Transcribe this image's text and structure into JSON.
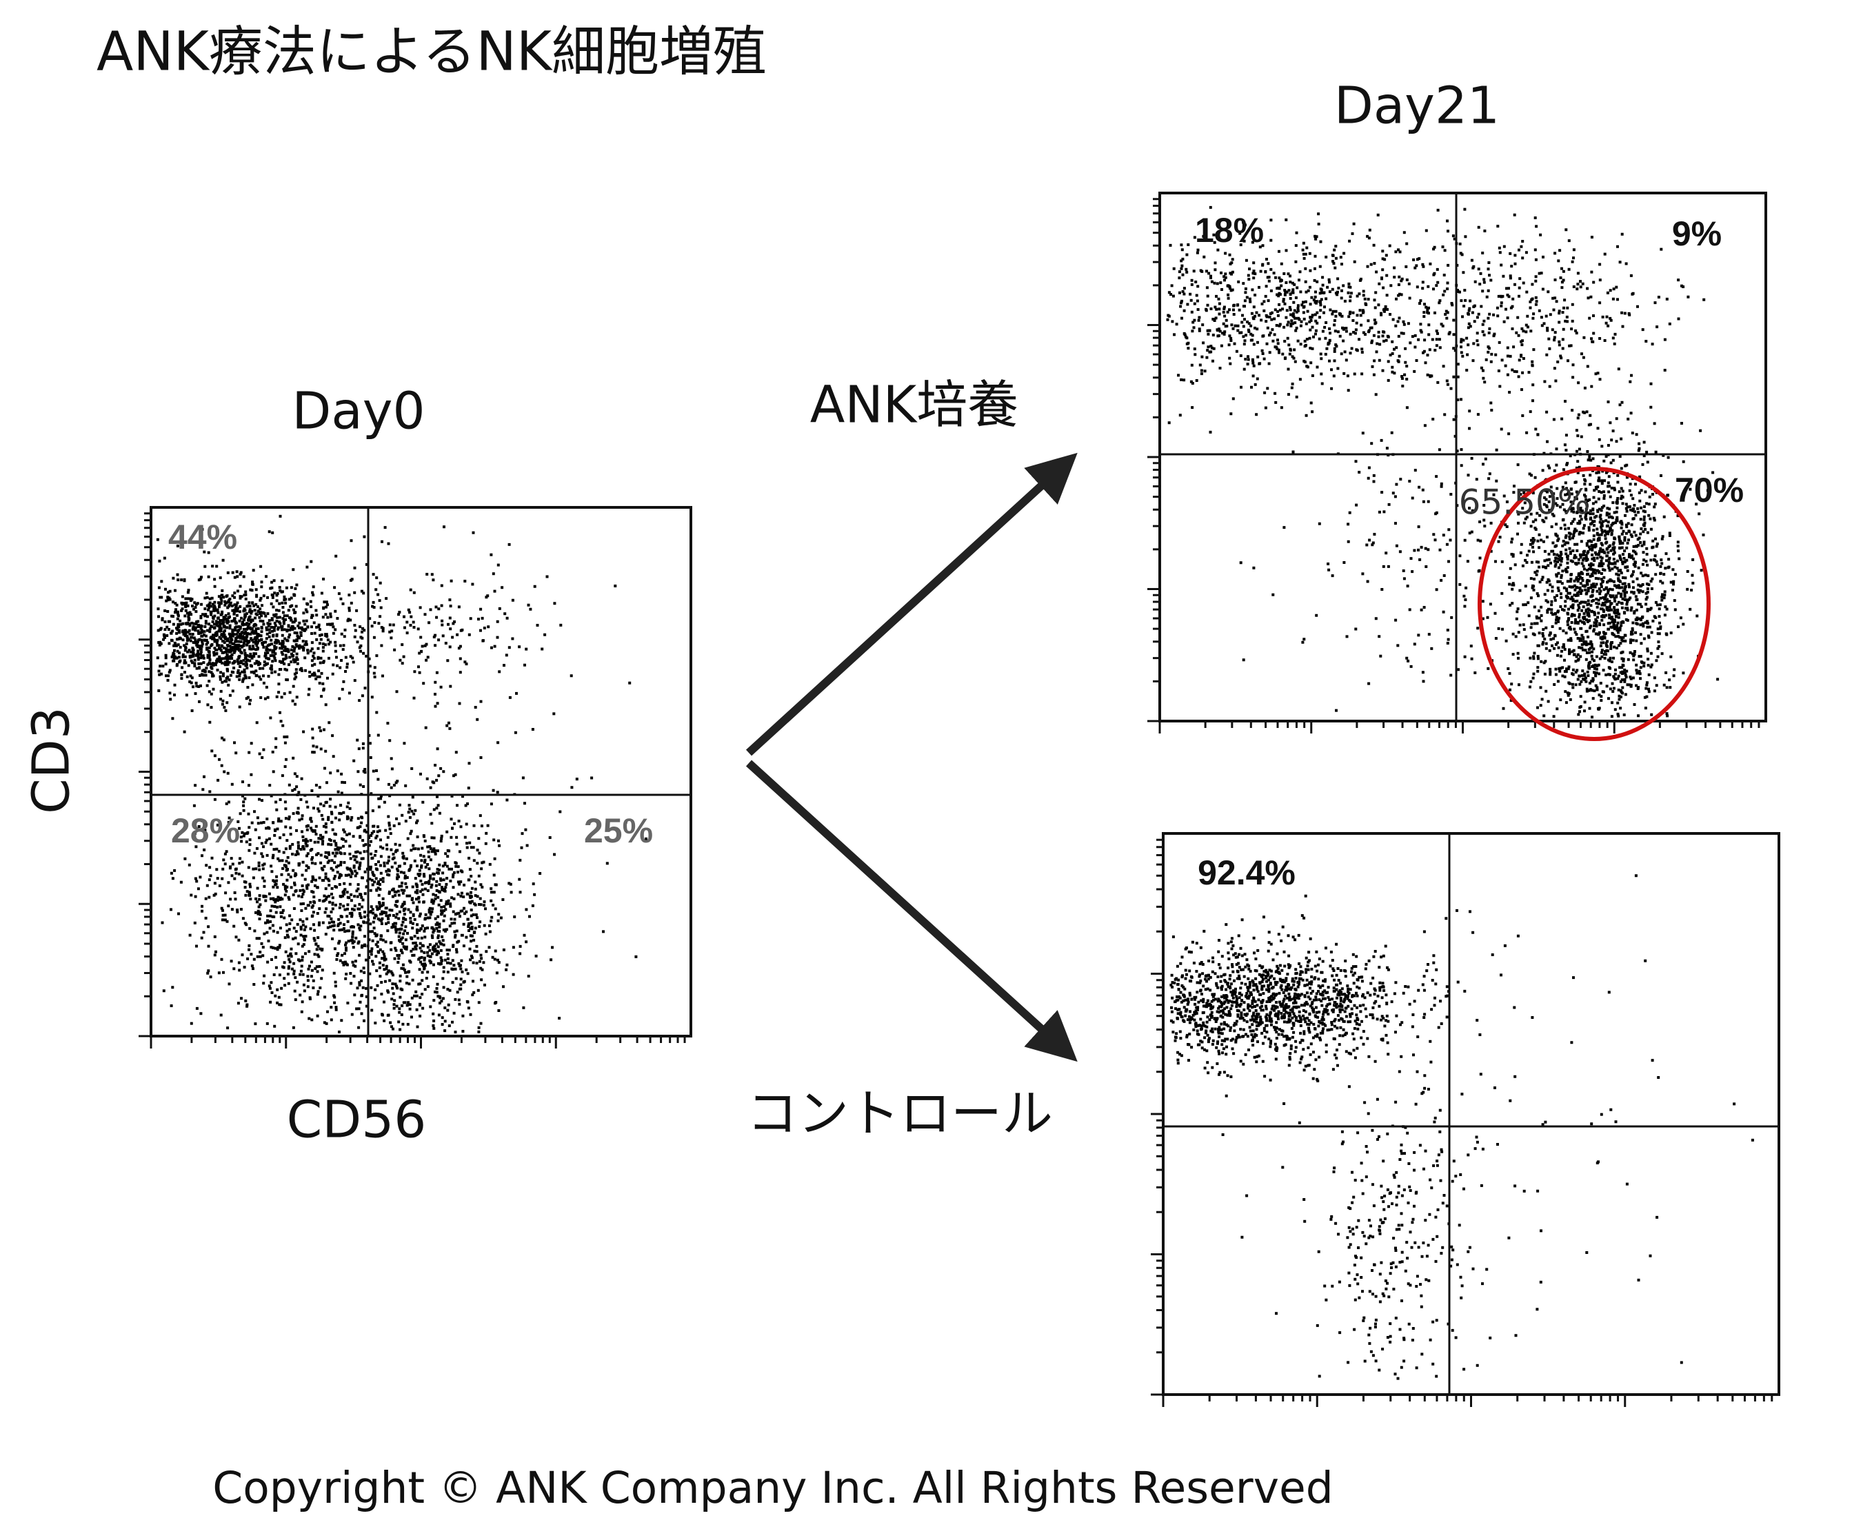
{
  "header": {
    "title": "ANK療法によるNK細胞増殖"
  },
  "day0": {
    "label": "Day0",
    "y_axis": "CD3",
    "x_axis": "CD56",
    "quadrants": [
      "44%",
      "28%",
      "25%"
    ]
  },
  "day21": {
    "label": "Day21",
    "ank": {
      "label": "ANK培養",
      "quadrants": [
        "18%",
        "9%",
        "70%"
      ],
      "gate": "65.50%"
    },
    "control": {
      "label": "コントロール",
      "quadrants": [
        "92.4%"
      ]
    }
  },
  "footer": {
    "copyright": "Copyright ©  ANK Company Inc.  All Rights Reserved"
  }
}
